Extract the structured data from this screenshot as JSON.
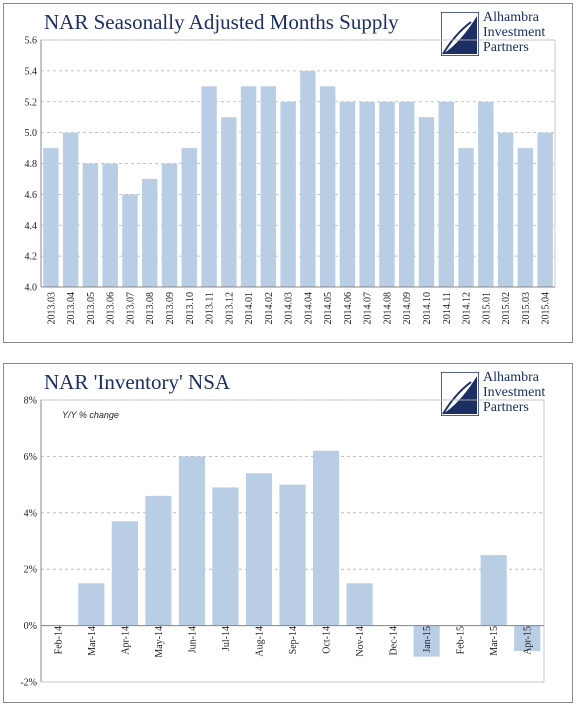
{
  "logo": {
    "line1": "Alhambra",
    "line2": "Investment",
    "line3": "Partners"
  },
  "colors": {
    "bar": "#b9cde5",
    "title": "#1b2f63",
    "grid": "#b0b0b0"
  },
  "chart_data": [
    {
      "type": "bar",
      "title": "NAR Seasonally Adjusted Months Supply",
      "ylim": [
        4.0,
        5.6
      ],
      "yticks": [
        "4.0",
        "4.2",
        "4.4",
        "4.6",
        "4.8",
        "5.0",
        "5.2",
        "5.4",
        "5.6"
      ],
      "categories": [
        "2013.03",
        "2013.04",
        "2013.05",
        "2013.06",
        "2013.07",
        "2013.08",
        "2013.09",
        "2013.10",
        "2013.11",
        "2013.12",
        "2014.01",
        "2014.02",
        "2014.03",
        "2014.04",
        "2014.05",
        "2014.06",
        "2014.07",
        "2014.08",
        "2014.09",
        "2014.10",
        "2014.11",
        "2014.12",
        "2015.01",
        "2015.02",
        "2015.03",
        "2015.04"
      ],
      "values": [
        4.9,
        5.0,
        4.8,
        4.8,
        4.6,
        4.7,
        4.8,
        4.9,
        5.3,
        5.1,
        5.3,
        5.3,
        5.2,
        5.4,
        5.3,
        5.2,
        5.2,
        5.2,
        5.2,
        5.1,
        5.2,
        4.9,
        5.2,
        5.0,
        4.9,
        5.0
      ],
      "grid": true
    },
    {
      "type": "bar",
      "title": "NAR 'Inventory' NSA",
      "annotation": "Y/Y % change",
      "ylim": [
        -2,
        8
      ],
      "yticks": [
        "-2%",
        "0%",
        "2%",
        "4%",
        "6%",
        "8%"
      ],
      "categories": [
        "Feb-14",
        "Mar-14",
        "Apr-14",
        "May-14",
        "Jun-14",
        "Jul-14",
        "Aug-14",
        "Sep-14",
        "Oct-14",
        "Nov-14",
        "Dec-14",
        "Jan-15",
        "Feb-15",
        "Mar-15",
        "Apr-15"
      ],
      "values": [
        0.0,
        1.5,
        3.7,
        4.6,
        6.0,
        4.9,
        5.4,
        5.0,
        6.2,
        1.5,
        0.0,
        -1.1,
        0.0,
        2.5,
        -0.9
      ],
      "grid": true
    }
  ]
}
